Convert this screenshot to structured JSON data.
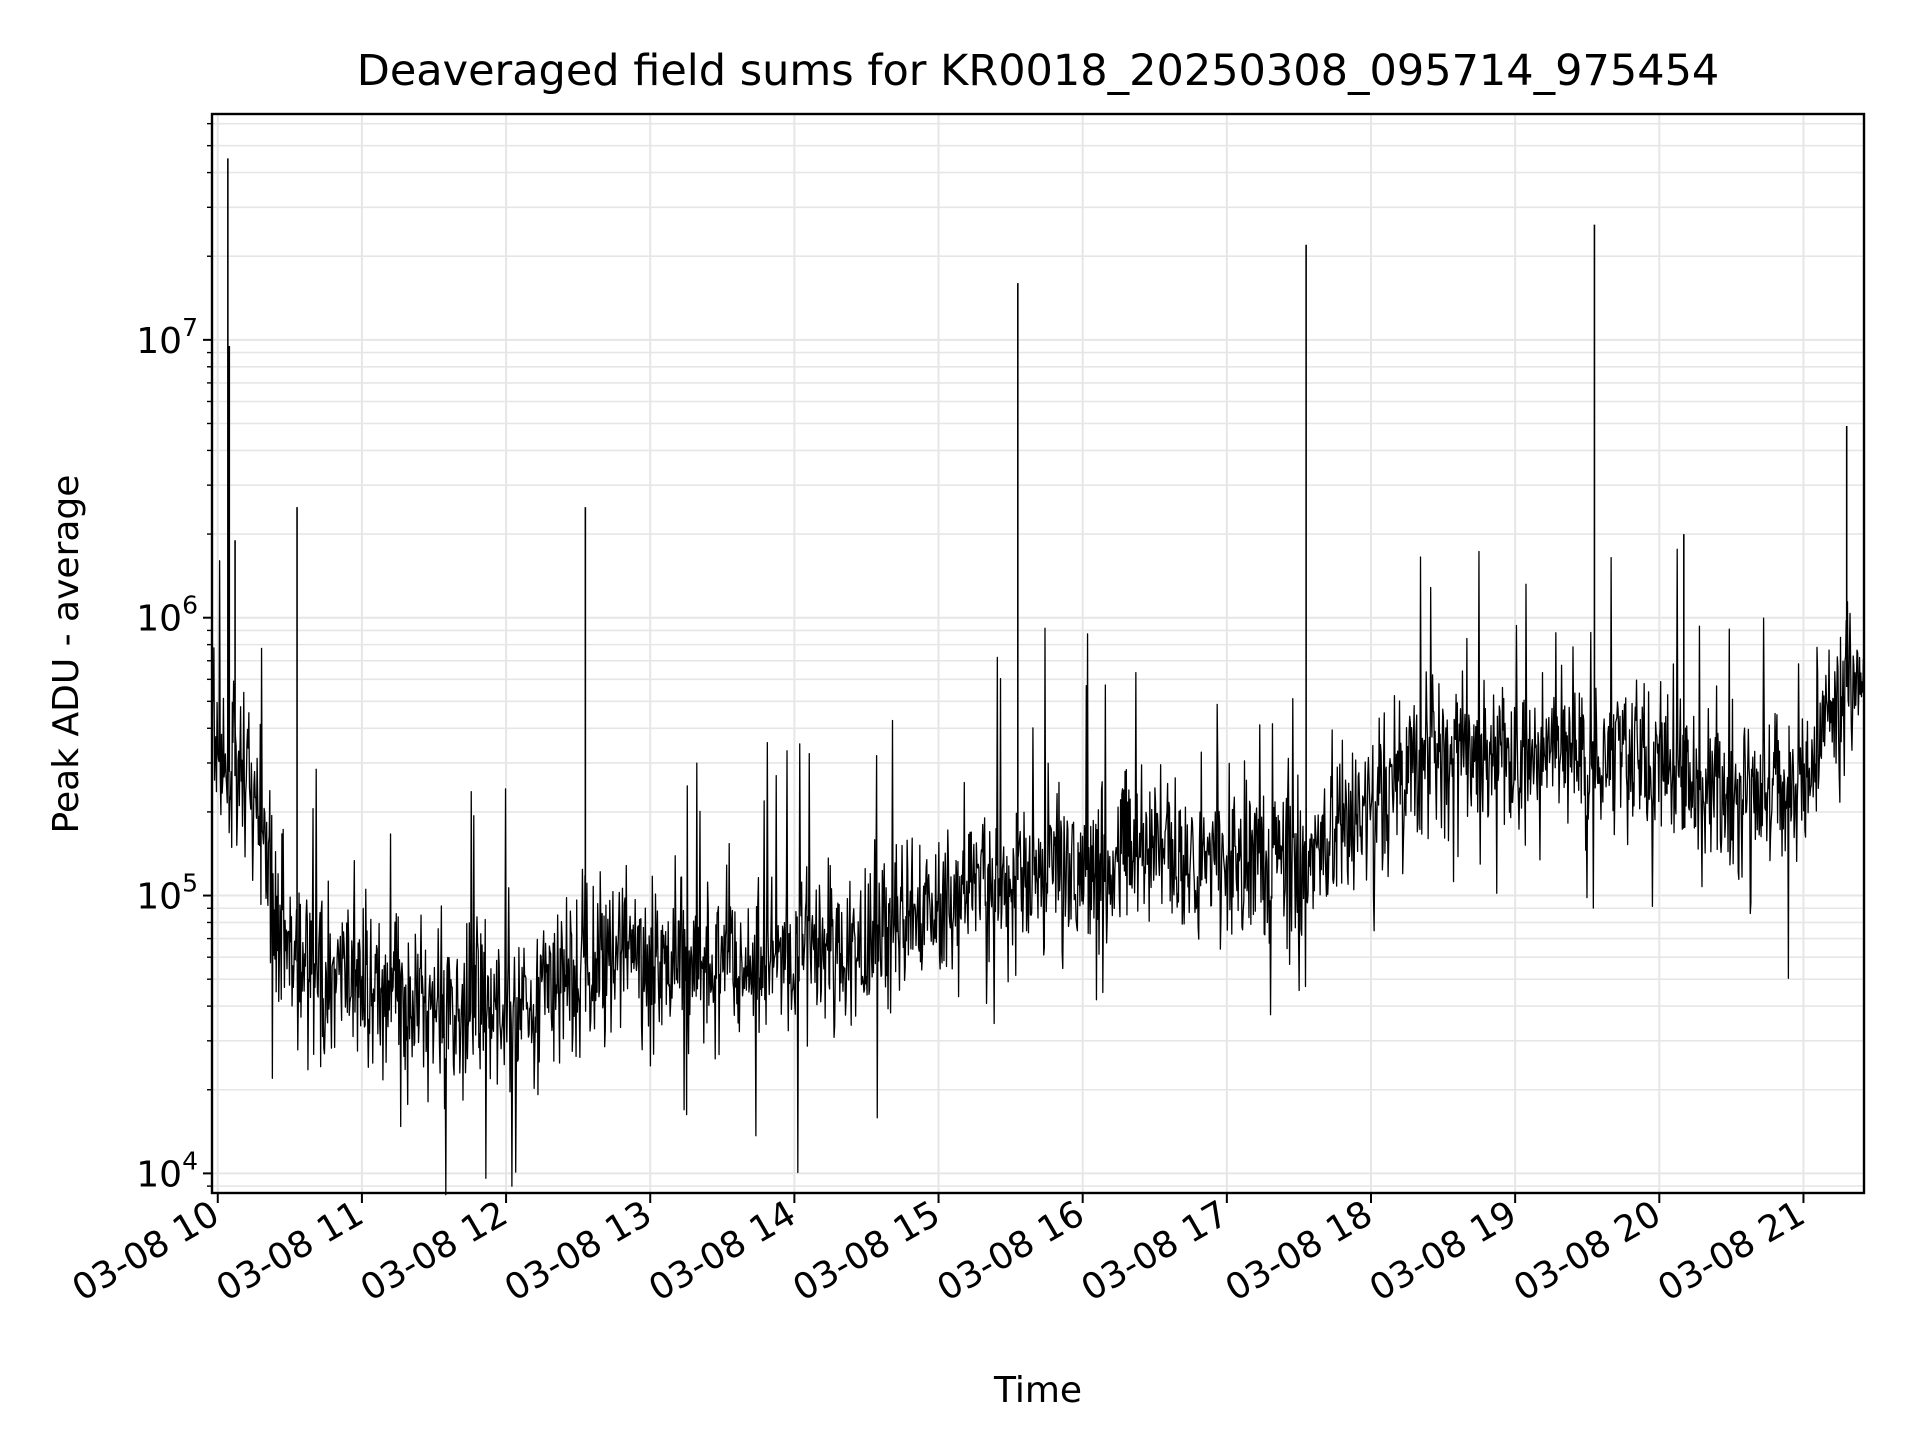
{
  "chart_data": {
    "type": "line",
    "title": "Deaveraged field sums for KR0018_20250308_095714_975454",
    "xlabel": "Time",
    "ylabel": "Peak ADU - average",
    "x_ticks": [
      "03-08 10",
      "03-08 11",
      "03-08 12",
      "03-08 13",
      "03-08 14",
      "03-08 15",
      "03-08 16",
      "03-08 17",
      "03-08 18",
      "03-08 19",
      "03-08 20",
      "03-08 21"
    ],
    "x_range": [
      "2025-03-08 09:57",
      "2025-03-08 21:25"
    ],
    "y_scale": "log",
    "y_range": [
      8500,
      65000000
    ],
    "y_ticks": [
      {
        "base": "10",
        "exp": "4"
      },
      {
        "base": "10",
        "exp": "5"
      },
      {
        "base": "10",
        "exp": "6"
      },
      {
        "base": "10",
        "exp": "7"
      }
    ],
    "grid": true,
    "line_color": "#000000",
    "grid_color": "#e6e6e6",
    "series": [
      {
        "time_hours": [
          9.96,
          10.0,
          10.2,
          10.3,
          10.5,
          10.75,
          11.0,
          11.25,
          11.5,
          11.75,
          12.0,
          12.25,
          12.5,
          12.75,
          13.0,
          13.25,
          13.5,
          13.75,
          14.0,
          14.25,
          14.5,
          14.75,
          15.0,
          15.25,
          15.5,
          15.75,
          16.0,
          16.25,
          16.5,
          16.75,
          17.0,
          17.25,
          17.5,
          17.75,
          18.0,
          18.25,
          18.5,
          18.75,
          19.0,
          19.25,
          19.5,
          19.75,
          20.0,
          20.25,
          20.5,
          20.75,
          21.0,
          21.2,
          21.42
        ],
        "values": [
          400000,
          300000,
          250000,
          180000,
          60000,
          50000,
          50000,
          45000,
          40000,
          40000,
          38000,
          42000,
          55000,
          65000,
          58000,
          60000,
          55000,
          58000,
          60000,
          65000,
          70000,
          80000,
          90000,
          100000,
          110000,
          130000,
          140000,
          140000,
          140000,
          135000,
          130000,
          130000,
          140000,
          150000,
          210000,
          280000,
          320000,
          330000,
          320000,
          330000,
          330000,
          330000,
          300000,
          230000,
          230000,
          230000,
          280000,
          500000,
          650000
        ]
      }
    ],
    "spikes": [
      {
        "time_hours": 10.07,
        "value": 45000000
      },
      {
        "time_hours": 10.08,
        "value": 9500000
      },
      {
        "time_hours": 10.12,
        "value": 1900000
      },
      {
        "time_hours": 10.55,
        "value": 2500000
      },
      {
        "time_hours": 12.55,
        "value": 2500000
      },
      {
        "time_hours": 15.55,
        "value": 16000000
      },
      {
        "time_hours": 17.55,
        "value": 22000000
      },
      {
        "time_hours": 19.55,
        "value": 26000000
      },
      {
        "time_hours": 20.17,
        "value": 2000000
      },
      {
        "time_hours": 21.3,
        "value": 4900000
      }
    ]
  }
}
